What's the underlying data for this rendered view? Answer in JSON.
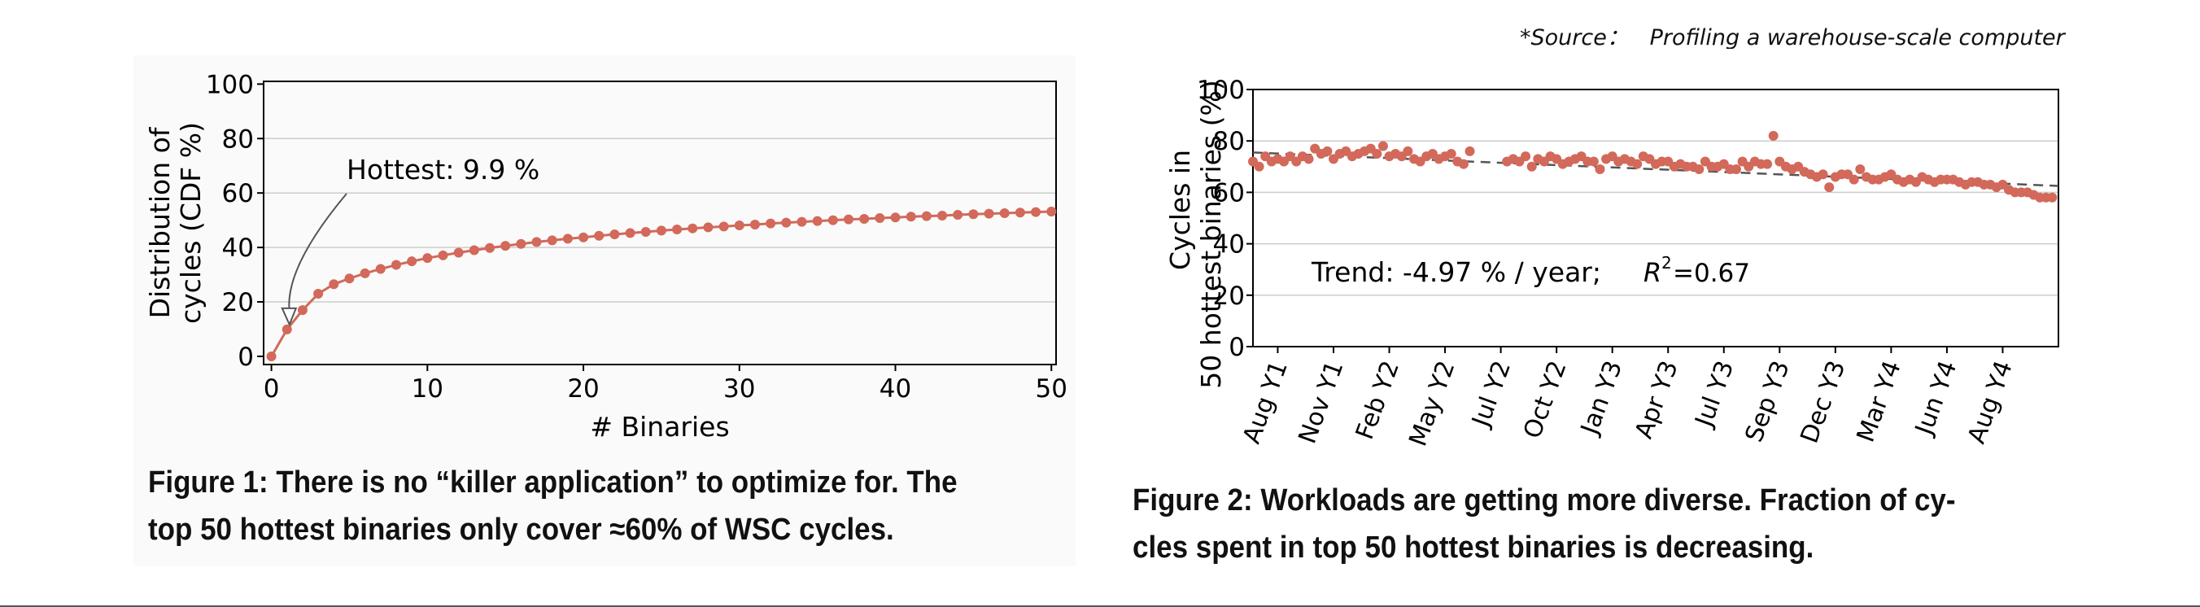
{
  "source_note": "*Source：   Profiling a warehouse-scale computer",
  "figure1": {
    "caption_line1": "Figure 1: There is no “killer application” to optimize for.  The",
    "caption_line2": "top 50 hottest binaries only cover ≈60% of WSC cycles."
  },
  "figure2": {
    "caption_line1": "Figure 2: Workloads are getting more diverse. Fraction of cy-",
    "caption_line2": "cles spent in top 50 hottest binaries is decreasing."
  },
  "colors": {
    "series": "#d2695a",
    "trend": "#555555",
    "grid": "#cccccc",
    "axis": "#000000"
  },
  "chart_data": [
    {
      "type": "line",
      "title": "",
      "xlabel": "# Binaries",
      "ylabel_line1": "Distribution of",
      "ylabel_line2": "cycles (CDF %)",
      "xlim": [
        -0.5,
        50.3
      ],
      "ylim": [
        -3,
        101
      ],
      "x_ticks": [
        0,
        10,
        20,
        30,
        40,
        50
      ],
      "y_ticks": [
        0,
        20,
        40,
        60,
        80,
        100
      ],
      "grid": "horizontal",
      "annotation": {
        "text": "Hottest: 9.9 %",
        "x": 1,
        "y": 9.9
      },
      "series": [
        {
          "x": [
            0,
            1,
            2,
            3,
            4,
            5,
            6,
            7,
            8,
            9,
            10,
            11,
            12,
            13,
            14,
            15,
            16,
            17,
            18,
            19,
            20,
            21,
            22,
            23,
            24,
            25,
            26,
            27,
            28,
            29,
            30,
            31,
            32,
            33,
            34,
            35,
            36,
            37,
            38,
            39,
            40,
            41,
            42,
            43,
            44,
            45,
            46,
            47,
            48,
            49,
            50
          ],
          "values": [
            0,
            9.9,
            17,
            23,
            26.5,
            28.6,
            30.5,
            32.1,
            33.6,
            34.9,
            36.1,
            37.1,
            38.1,
            39,
            39.8,
            40.6,
            41.3,
            42,
            42.6,
            43.2,
            43.7,
            44.3,
            44.8,
            45.3,
            45.7,
            46.2,
            46.6,
            47,
            47.4,
            47.7,
            48.1,
            48.4,
            48.8,
            49.1,
            49.4,
            49.7,
            50,
            50.3,
            50.5,
            50.8,
            51,
            51.3,
            51.5,
            51.7,
            52,
            52.2,
            52.4,
            52.6,
            52.8,
            53,
            53.2
          ]
        }
      ]
    },
    {
      "type": "scatter",
      "title": "",
      "xlabel": "",
      "ylabel_line1": "Cycles in",
      "ylabel_line2": "50 hottest binaries (%)",
      "xlim": [
        -4,
        126
      ],
      "ylim": [
        0,
        100
      ],
      "x_ticks": [
        {
          "label": "Aug Y1",
          "x": 0
        },
        {
          "label": "Nov Y1",
          "x": 9
        },
        {
          "label": "Feb Y2",
          "x": 18
        },
        {
          "label": "May Y2",
          "x": 27
        },
        {
          "label": "Jul Y2",
          "x": 36
        },
        {
          "label": "Oct Y2",
          "x": 45
        },
        {
          "label": "Jan Y3",
          "x": 54
        },
        {
          "label": "Apr Y3",
          "x": 63
        },
        {
          "label": "Jul Y3",
          "x": 72
        },
        {
          "label": "Sep Y3",
          "x": 81
        },
        {
          "label": "Dec Y3",
          "x": 90
        },
        {
          "label": "Mar Y4",
          "x": 99
        },
        {
          "label": "Jun Y4",
          "x": 108
        },
        {
          "label": "Aug Y4",
          "x": 117
        }
      ],
      "y_ticks": [
        0,
        20,
        40,
        60,
        80,
        100
      ],
      "grid": "horizontal",
      "annotation": {
        "text_prefix": "Trend: -4.97 % / year;",
        "r2_label": "R",
        "r2_value": "=0.67"
      },
      "trend_line": {
        "x": [
          -4,
          126
        ],
        "y": [
          75.5,
          62.5
        ]
      },
      "series": [
        {
          "x": [
            -4,
            -3,
            -2,
            -1,
            0,
            1,
            2,
            3,
            4,
            5,
            6,
            7,
            8,
            9,
            10,
            11,
            12,
            13,
            14,
            15,
            16,
            17,
            18,
            19,
            20,
            21,
            22,
            23,
            24,
            25,
            26,
            27,
            28,
            29,
            30,
            31,
            37,
            38,
            39,
            40,
            41,
            42,
            43,
            44,
            45,
            46,
            47,
            48,
            49,
            50,
            51,
            52,
            53,
            54,
            55,
            56,
            57,
            58,
            59,
            60,
            61,
            62,
            63,
            64,
            65,
            66,
            67,
            68,
            69,
            70,
            71,
            72,
            73,
            74,
            75,
            76,
            77,
            78,
            79,
            80,
            81,
            82,
            83,
            84,
            85,
            86,
            87,
            88,
            89,
            90,
            91,
            92,
            93,
            94,
            95,
            96,
            97,
            98,
            99,
            100,
            101,
            102,
            103,
            104,
            105,
            106,
            107,
            108,
            109,
            110,
            111,
            112,
            113,
            114,
            115,
            116,
            117,
            118,
            119,
            120,
            121,
            122,
            123,
            124,
            125
          ],
          "values": [
            72,
            70,
            74,
            72,
            73,
            72,
            74,
            72,
            74,
            73,
            77,
            75,
            76,
            73,
            75,
            76,
            74,
            75,
            76,
            77,
            75,
            78,
            74,
            75,
            74,
            76,
            73,
            72,
            74,
            75,
            73,
            74,
            75,
            72,
            71,
            76,
            72,
            73,
            72,
            74,
            70,
            73,
            72,
            74,
            73,
            71,
            72,
            73,
            74,
            72,
            72,
            69,
            73,
            74,
            72,
            73,
            72,
            71,
            74,
            73,
            71,
            72,
            72,
            70,
            71,
            70,
            70,
            69,
            72,
            70,
            70,
            71,
            69,
            69,
            72,
            70,
            72,
            71,
            71,
            82,
            72,
            70,
            69,
            70,
            68,
            67,
            66,
            67,
            62,
            66,
            67,
            67,
            65,
            69,
            66,
            65,
            65,
            66,
            67,
            65,
            64,
            65,
            64,
            66,
            65,
            64,
            65,
            65,
            65,
            64,
            63,
            64,
            64,
            63,
            63,
            62,
            63,
            61,
            60,
            60,
            60,
            59,
            58,
            58,
            58
          ]
        }
      ]
    }
  ]
}
